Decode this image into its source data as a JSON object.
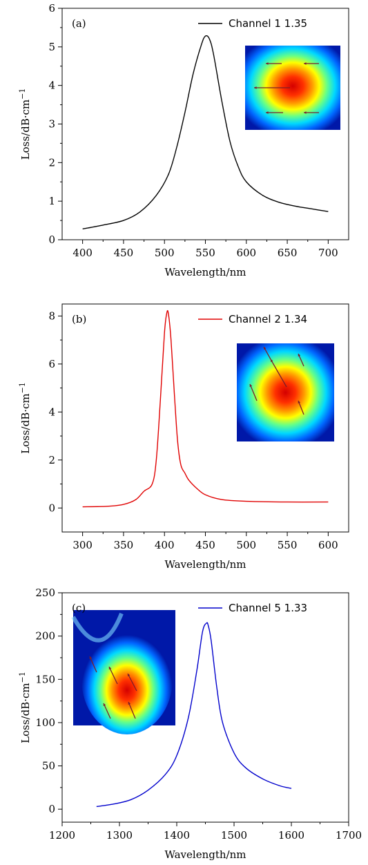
{
  "chart_data": [
    {
      "type": "line",
      "panel_label": "(a)",
      "xlabel": "Wavelength/nm",
      "ylabel": "Loss/dB·cm",
      "ylabel_sup": "−1",
      "xlim": [
        375,
        725
      ],
      "ylim": [
        0,
        6
      ],
      "xticks": [
        400,
        450,
        500,
        550,
        600,
        650,
        700
      ],
      "yticks": [
        0,
        1,
        2,
        3,
        4,
        5,
        6
      ],
      "legend_position": "top-right",
      "inset_position": "right",
      "series": [
        {
          "name": "Channel 1 1.35",
          "color": "#000000",
          "x": [
            400,
            425,
            450,
            470,
            490,
            505,
            515,
            525,
            535,
            545,
            550,
            555,
            560,
            570,
            580,
            590,
            600,
            620,
            640,
            660,
            680,
            700
          ],
          "y": [
            0.28,
            0.38,
            0.5,
            0.72,
            1.15,
            1.7,
            2.4,
            3.3,
            4.3,
            5.05,
            5.28,
            5.2,
            4.8,
            3.6,
            2.55,
            1.9,
            1.5,
            1.15,
            0.97,
            0.87,
            0.8,
            0.73
          ]
        }
      ]
    },
    {
      "type": "line",
      "panel_label": "(b)",
      "xlabel": "Wavelength/nm",
      "ylabel": "Loss/dB·cm",
      "ylabel_sup": "−1",
      "xlim": [
        275,
        625
      ],
      "ylim": [
        -1,
        8.5
      ],
      "xticks": [
        300,
        350,
        400,
        450,
        500,
        550,
        600
      ],
      "yticks": [
        0,
        2,
        4,
        6,
        8
      ],
      "legend_position": "top-right",
      "inset_position": "right",
      "series": [
        {
          "name": "Channel 2 1.34",
          "color": "#e00000",
          "x": [
            300,
            330,
            350,
            365,
            375,
            385,
            390,
            395,
            400,
            403,
            405,
            408,
            412,
            416,
            420,
            425,
            430,
            440,
            450,
            470,
            500,
            550,
            600
          ],
          "y": [
            0.05,
            0.07,
            0.15,
            0.35,
            0.7,
            1.0,
            2.0,
            4.5,
            7.3,
            8.15,
            8.05,
            7.0,
            4.8,
            2.8,
            1.8,
            1.45,
            1.15,
            0.8,
            0.55,
            0.35,
            0.28,
            0.25,
            0.25
          ]
        }
      ]
    },
    {
      "type": "line",
      "panel_label": "(c)",
      "xlabel": "Wavelength/nm",
      "ylabel": "Loss/dB·cm",
      "ylabel_sup": "−1",
      "xlim": [
        1200,
        1700
      ],
      "ylim": [
        -15,
        250
      ],
      "xticks": [
        1200,
        1300,
        1400,
        1500,
        1600,
        1700
      ],
      "yticks": [
        0,
        50,
        100,
        150,
        200,
        250
      ],
      "legend_position": "top-right",
      "inset_position": "left",
      "series": [
        {
          "name": "Channel 5 1.33",
          "color": "#0000cc",
          "x": [
            1260,
            1290,
            1320,
            1350,
            1380,
            1400,
            1420,
            1435,
            1445,
            1452,
            1455,
            1460,
            1470,
            1480,
            1500,
            1520,
            1550,
            1580,
            1600
          ],
          "y": [
            3,
            6,
            11,
            22,
            40,
            62,
            105,
            160,
            205,
            215,
            212,
            195,
            140,
            100,
            65,
            48,
            35,
            27,
            24
          ]
        }
      ]
    }
  ]
}
